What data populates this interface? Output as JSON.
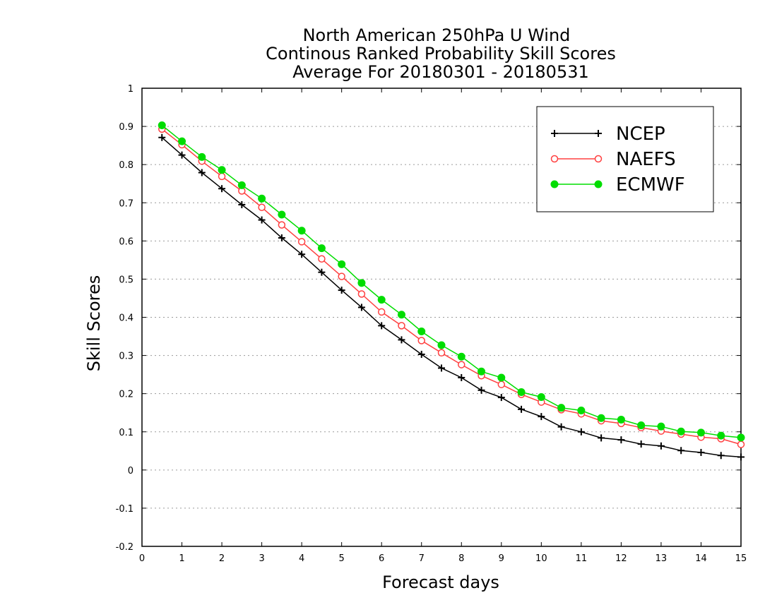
{
  "chart_data": {
    "type": "line",
    "title": [
      "North American 250hPa U Wind",
      "Continous Ranked Probability Skill Scores",
      "Average For 20180301 - 20180531"
    ],
    "xlabel": "Forecast days",
    "ylabel": "Skill Scores",
    "xlim": [
      0,
      15
    ],
    "ylim": [
      -0.2,
      1
    ],
    "xticks": [
      0,
      1,
      2,
      3,
      4,
      5,
      6,
      7,
      8,
      9,
      10,
      11,
      12,
      13,
      14,
      15
    ],
    "xtick_labels": [
      "0",
      "1",
      "2",
      "3",
      "4",
      "5",
      "6",
      "7",
      "8",
      "9",
      "10",
      "11",
      "12",
      "13",
      "14",
      "15"
    ],
    "yticks": [
      -0.2,
      -0.1,
      0,
      0.1,
      0.2,
      0.3,
      0.4,
      0.5,
      0.6,
      0.7,
      0.8,
      0.9,
      1
    ],
    "ytick_labels": [
      "-0.2",
      "-0.1",
      "0",
      "0.1",
      "0.2",
      "0.3",
      "0.4",
      "0.5",
      "0.6",
      "0.7",
      "0.8",
      "0.9",
      "1"
    ],
    "grid": "horizontal-dotted",
    "legend_position": "top-right",
    "x": [
      0.5,
      1,
      1.5,
      2,
      2.5,
      3,
      3.5,
      4,
      4.5,
      5,
      5.5,
      6,
      6.5,
      7,
      7.5,
      8,
      8.5,
      9,
      9.5,
      10,
      10.5,
      11,
      11.5,
      12,
      12.5,
      13,
      13.5,
      14,
      14.5,
      15
    ],
    "series": [
      {
        "name": "NCEP",
        "color": "#000000",
        "marker": "plus",
        "values": [
          0.871,
          0.825,
          0.779,
          0.737,
          0.695,
          0.655,
          0.608,
          0.565,
          0.518,
          0.471,
          0.426,
          0.378,
          0.341,
          0.303,
          0.267,
          0.242,
          0.209,
          0.19,
          0.159,
          0.14,
          0.113,
          0.1,
          0.084,
          0.079,
          0.068,
          0.063,
          0.051,
          0.046,
          0.038,
          0.034
        ]
      },
      {
        "name": "NAEFS",
        "color": "#ff4040",
        "marker": "open-circle",
        "values": [
          0.893,
          0.852,
          0.809,
          0.769,
          0.731,
          0.688,
          0.642,
          0.598,
          0.553,
          0.507,
          0.461,
          0.414,
          0.378,
          0.339,
          0.307,
          0.276,
          0.247,
          0.224,
          0.198,
          0.178,
          0.158,
          0.147,
          0.129,
          0.122,
          0.111,
          0.102,
          0.094,
          0.086,
          0.082,
          0.067
        ]
      },
      {
        "name": "ECMWF",
        "color": "#00dd00",
        "marker": "filled-circle",
        "values": [
          0.903,
          0.861,
          0.82,
          0.786,
          0.746,
          0.711,
          0.669,
          0.627,
          0.581,
          0.539,
          0.49,
          0.446,
          0.407,
          0.363,
          0.327,
          0.297,
          0.258,
          0.242,
          0.204,
          0.191,
          0.163,
          0.156,
          0.136,
          0.132,
          0.117,
          0.114,
          0.101,
          0.098,
          0.09,
          0.085
        ]
      }
    ]
  }
}
